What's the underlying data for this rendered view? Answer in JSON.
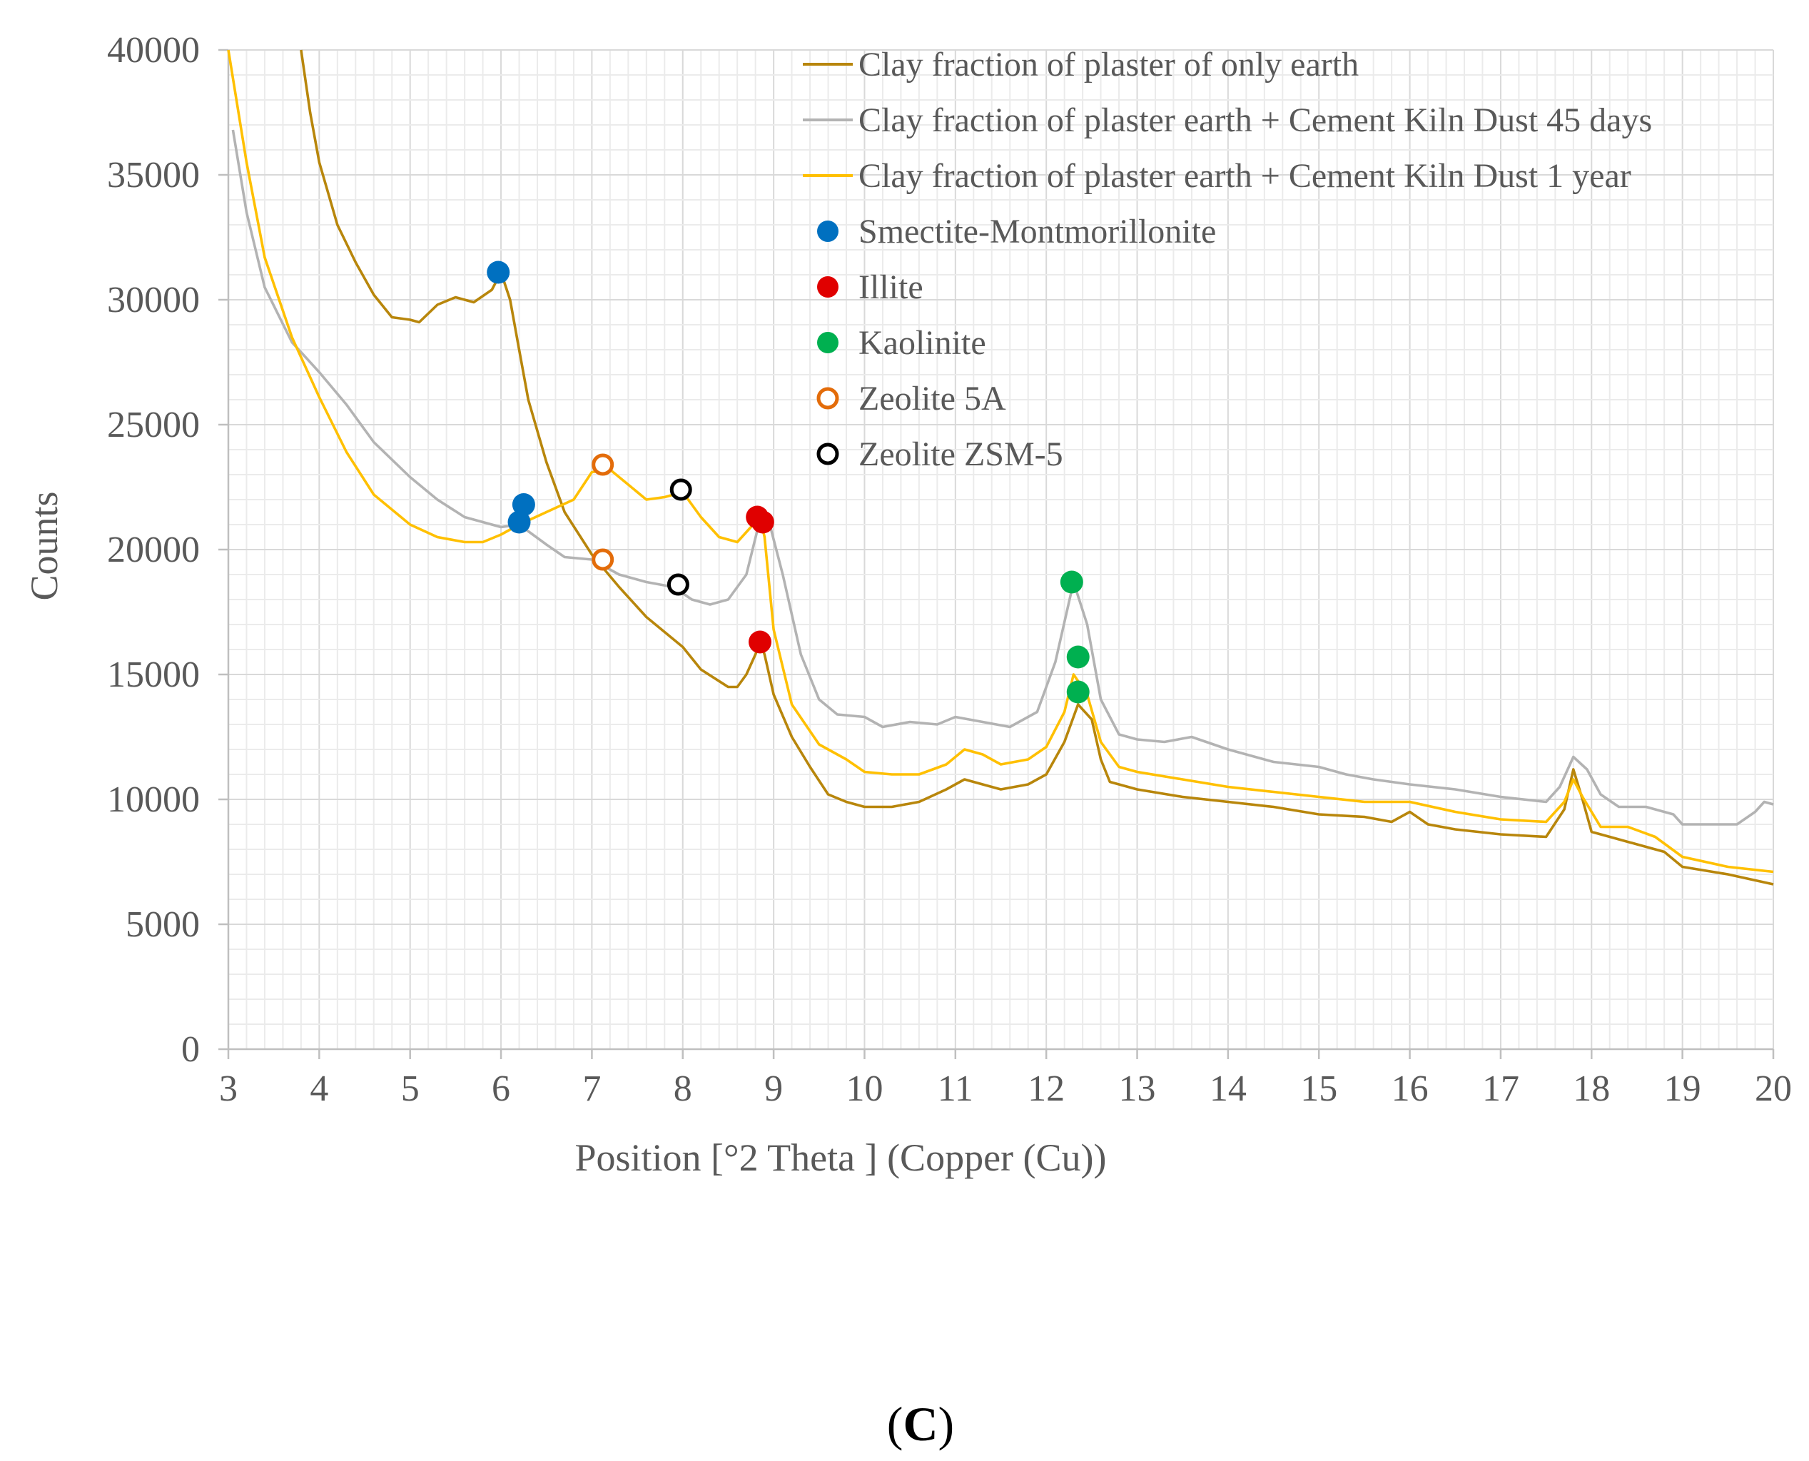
{
  "chart_data": {
    "type": "line",
    "title": "",
    "xlabel": "Position [°2 Theta ] (Copper (Cu))",
    "ylabel": "Counts",
    "xlim": [
      3,
      20
    ],
    "ylim": [
      0,
      40000
    ],
    "x_ticks": [
      "3",
      "4",
      "5",
      "6",
      "7",
      "8",
      "9",
      "10",
      "11",
      "12",
      "13",
      "14",
      "15",
      "16",
      "17",
      "18",
      "19",
      "20"
    ],
    "y_ticks": [
      "0",
      "5000",
      "10000",
      "15000",
      "20000",
      "25000",
      "30000",
      "35000",
      "40000"
    ],
    "grid": true,
    "legend_position": "top-right",
    "series": [
      {
        "name": "Clay fraction of plaster of only earth",
        "color": "#b8860b",
        "points": [
          [
            3.8,
            40000
          ],
          [
            3.9,
            37500
          ],
          [
            4.0,
            35500
          ],
          [
            4.2,
            33000
          ],
          [
            4.4,
            31500
          ],
          [
            4.6,
            30200
          ],
          [
            4.8,
            29300
          ],
          [
            5.0,
            29200
          ],
          [
            5.1,
            29100
          ],
          [
            5.3,
            29800
          ],
          [
            5.5,
            30100
          ],
          [
            5.7,
            29900
          ],
          [
            5.9,
            30400
          ],
          [
            6.0,
            31100
          ],
          [
            6.1,
            30000
          ],
          [
            6.2,
            28000
          ],
          [
            6.3,
            26000
          ],
          [
            6.5,
            23500
          ],
          [
            6.7,
            21500
          ],
          [
            7.0,
            19800
          ],
          [
            7.3,
            18500
          ],
          [
            7.6,
            17300
          ],
          [
            8.0,
            16100
          ],
          [
            8.2,
            15200
          ],
          [
            8.5,
            14500
          ],
          [
            8.6,
            14500
          ],
          [
            8.7,
            15000
          ],
          [
            8.8,
            15800
          ],
          [
            8.85,
            16300
          ],
          [
            8.9,
            15800
          ],
          [
            9.0,
            14200
          ],
          [
            9.2,
            12500
          ],
          [
            9.4,
            11300
          ],
          [
            9.6,
            10200
          ],
          [
            9.8,
            9900
          ],
          [
            10.0,
            9700
          ],
          [
            10.3,
            9700
          ],
          [
            10.6,
            9900
          ],
          [
            10.9,
            10400
          ],
          [
            11.1,
            10800
          ],
          [
            11.3,
            10600
          ],
          [
            11.5,
            10400
          ],
          [
            11.8,
            10600
          ],
          [
            12.0,
            11000
          ],
          [
            12.2,
            12300
          ],
          [
            12.35,
            13800
          ],
          [
            12.5,
            13200
          ],
          [
            12.6,
            11600
          ],
          [
            12.7,
            10700
          ],
          [
            13.0,
            10400
          ],
          [
            13.5,
            10100
          ],
          [
            14.0,
            9900
          ],
          [
            14.5,
            9700
          ],
          [
            15.0,
            9400
          ],
          [
            15.5,
            9300
          ],
          [
            15.8,
            9100
          ],
          [
            16.0,
            9500
          ],
          [
            16.2,
            9000
          ],
          [
            16.5,
            8800
          ],
          [
            17.0,
            8600
          ],
          [
            17.5,
            8500
          ],
          [
            17.7,
            9600
          ],
          [
            17.8,
            11200
          ],
          [
            17.9,
            10000
          ],
          [
            18.0,
            8700
          ],
          [
            18.2,
            8500
          ],
          [
            18.5,
            8200
          ],
          [
            18.8,
            7900
          ],
          [
            19.0,
            7300
          ],
          [
            19.5,
            7000
          ],
          [
            20.0,
            6600
          ]
        ]
      },
      {
        "name": "Clay fraction of plaster earth + Cement Kiln Dust 45 days",
        "color": "#b3b3b3",
        "points": [
          [
            3.05,
            36800
          ],
          [
            3.2,
            33500
          ],
          [
            3.4,
            30500
          ],
          [
            3.7,
            28300
          ],
          [
            4.0,
            27100
          ],
          [
            4.3,
            25800
          ],
          [
            4.6,
            24300
          ],
          [
            5.0,
            22900
          ],
          [
            5.3,
            22000
          ],
          [
            5.6,
            21300
          ],
          [
            6.0,
            20900
          ],
          [
            6.2,
            21000
          ],
          [
            6.5,
            20200
          ],
          [
            6.7,
            19700
          ],
          [
            7.0,
            19600
          ],
          [
            7.3,
            19000
          ],
          [
            7.6,
            18700
          ],
          [
            7.9,
            18500
          ],
          [
            8.1,
            18000
          ],
          [
            8.3,
            17800
          ],
          [
            8.5,
            18000
          ],
          [
            8.7,
            19000
          ],
          [
            8.85,
            21200
          ],
          [
            8.95,
            21100
          ],
          [
            9.1,
            19000
          ],
          [
            9.3,
            15800
          ],
          [
            9.5,
            14000
          ],
          [
            9.7,
            13400
          ],
          [
            10.0,
            13300
          ],
          [
            10.2,
            12900
          ],
          [
            10.5,
            13100
          ],
          [
            10.8,
            13000
          ],
          [
            11.0,
            13300
          ],
          [
            11.3,
            13100
          ],
          [
            11.6,
            12900
          ],
          [
            11.9,
            13500
          ],
          [
            12.1,
            15500
          ],
          [
            12.3,
            18700
          ],
          [
            12.45,
            17000
          ],
          [
            12.6,
            14000
          ],
          [
            12.8,
            12600
          ],
          [
            13.0,
            12400
          ],
          [
            13.3,
            12300
          ],
          [
            13.6,
            12500
          ],
          [
            14.0,
            12000
          ],
          [
            14.5,
            11500
          ],
          [
            15.0,
            11300
          ],
          [
            15.3,
            11000
          ],
          [
            15.6,
            10800
          ],
          [
            16.0,
            10600
          ],
          [
            16.5,
            10400
          ],
          [
            17.0,
            10100
          ],
          [
            17.5,
            9900
          ],
          [
            17.65,
            10500
          ],
          [
            17.8,
            11700
          ],
          [
            17.95,
            11200
          ],
          [
            18.1,
            10200
          ],
          [
            18.3,
            9700
          ],
          [
            18.6,
            9700
          ],
          [
            18.9,
            9400
          ],
          [
            19.0,
            9000
          ],
          [
            19.3,
            9000
          ],
          [
            19.6,
            9000
          ],
          [
            19.8,
            9500
          ],
          [
            19.9,
            9900
          ],
          [
            20.0,
            9800
          ]
        ]
      },
      {
        "name": "Clay fraction of plaster earth + Cement Kiln Dust 1 year",
        "color": "#ffc000",
        "points": [
          [
            3.0,
            40000
          ],
          [
            3.2,
            35500
          ],
          [
            3.4,
            31700
          ],
          [
            3.7,
            28500
          ],
          [
            4.0,
            26100
          ],
          [
            4.3,
            23900
          ],
          [
            4.6,
            22200
          ],
          [
            5.0,
            21000
          ],
          [
            5.3,
            20500
          ],
          [
            5.6,
            20300
          ],
          [
            5.8,
            20300
          ],
          [
            6.0,
            20600
          ],
          [
            6.2,
            21000
          ],
          [
            6.5,
            21500
          ],
          [
            6.8,
            22000
          ],
          [
            7.0,
            23100
          ],
          [
            7.2,
            23200
          ],
          [
            7.4,
            22600
          ],
          [
            7.6,
            22000
          ],
          [
            7.8,
            22100
          ],
          [
            8.0,
            22300
          ],
          [
            8.2,
            21300
          ],
          [
            8.4,
            20500
          ],
          [
            8.6,
            20300
          ],
          [
            8.8,
            21100
          ],
          [
            8.85,
            21300
          ],
          [
            8.9,
            20500
          ],
          [
            9.0,
            16800
          ],
          [
            9.2,
            13800
          ],
          [
            9.5,
            12200
          ],
          [
            9.8,
            11600
          ],
          [
            10.0,
            11100
          ],
          [
            10.3,
            11000
          ],
          [
            10.6,
            11000
          ],
          [
            10.9,
            11400
          ],
          [
            11.1,
            12000
          ],
          [
            11.3,
            11800
          ],
          [
            11.5,
            11400
          ],
          [
            11.8,
            11600
          ],
          [
            12.0,
            12100
          ],
          [
            12.2,
            13500
          ],
          [
            12.3,
            15000
          ],
          [
            12.45,
            14200
          ],
          [
            12.6,
            12300
          ],
          [
            12.8,
            11300
          ],
          [
            13.0,
            11100
          ],
          [
            13.5,
            10800
          ],
          [
            14.0,
            10500
          ],
          [
            14.5,
            10300
          ],
          [
            15.0,
            10100
          ],
          [
            15.5,
            9900
          ],
          [
            16.0,
            9900
          ],
          [
            16.5,
            9500
          ],
          [
            17.0,
            9200
          ],
          [
            17.5,
            9100
          ],
          [
            17.7,
            9900
          ],
          [
            17.8,
            10800
          ],
          [
            17.9,
            10100
          ],
          [
            18.1,
            8900
          ],
          [
            18.4,
            8900
          ],
          [
            18.7,
            8500
          ],
          [
            19.0,
            7700
          ],
          [
            19.5,
            7300
          ],
          [
            20.0,
            7100
          ]
        ]
      }
    ],
    "markers": [
      {
        "name": "Smectite-Montmorillonite",
        "color": "#0070c0",
        "style": "filled",
        "points": [
          [
            5.97,
            31100
          ],
          [
            6.25,
            21800
          ],
          [
            6.2,
            21100
          ]
        ]
      },
      {
        "name": "Illite",
        "color": "#e00000",
        "style": "filled",
        "points": [
          [
            8.85,
            16300
          ],
          [
            8.82,
            21300
          ],
          [
            8.88,
            21100
          ]
        ]
      },
      {
        "name": "Kaolinite",
        "color": "#00b050",
        "style": "filled",
        "points": [
          [
            12.28,
            18700
          ],
          [
            12.35,
            15700
          ],
          [
            12.35,
            14300
          ]
        ]
      },
      {
        "name": "Zeolite 5A",
        "color": "#e36c0a",
        "style": "hollow",
        "points": [
          [
            7.12,
            23400
          ],
          [
            7.12,
            19600
          ]
        ]
      },
      {
        "name": "Zeolite ZSM-5",
        "color": "#000000",
        "style": "hollow",
        "points": [
          [
            7.98,
            22400
          ],
          [
            7.95,
            18600
          ]
        ]
      }
    ]
  },
  "panel_label": {
    "open": "(",
    "letter": "C",
    "close": ")"
  }
}
